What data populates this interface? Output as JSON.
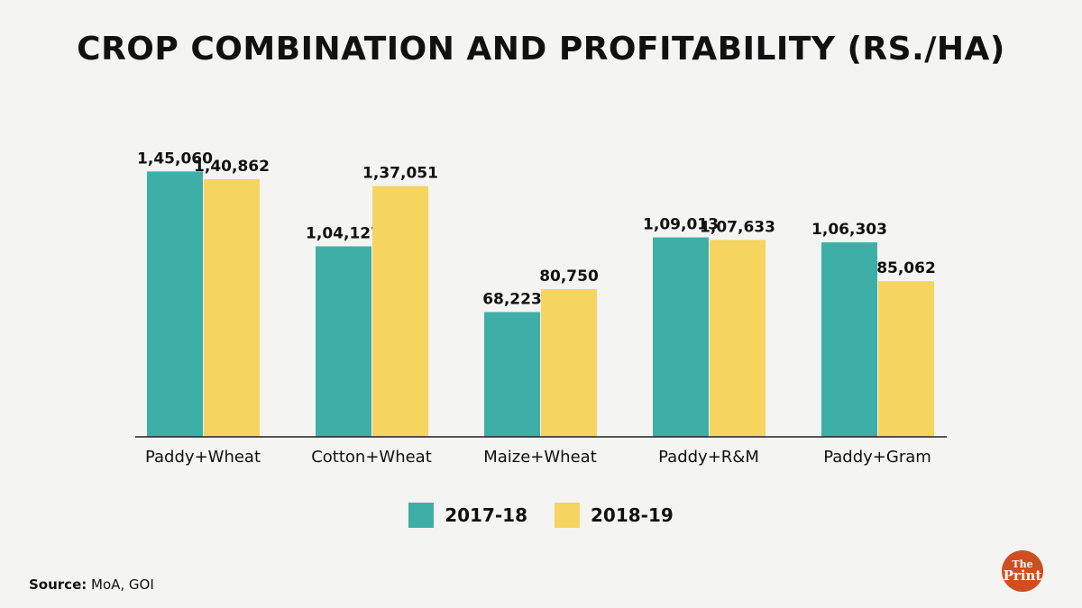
{
  "chart_data": {
    "type": "bar",
    "title": "CROP COMBINATION AND PROFITABILITY (RS./HA)",
    "categories": [
      "Paddy+Wheat",
      "Cotton+Wheat",
      "Maize+Wheat",
      "Paddy+R&M",
      "Paddy+Gram"
    ],
    "series": [
      {
        "name": "2017-18",
        "color": "#3eafa6",
        "values": [
          145060,
          104127,
          68223,
          109013,
          106303
        ],
        "labels": [
          "1,45,060",
          "1,04,127",
          "68,223",
          "1,09,013",
          "1,06,303"
        ]
      },
      {
        "name": "2018-19",
        "color": "#f5d460",
        "values": [
          140862,
          137051,
          80750,
          107633,
          85062
        ],
        "labels": [
          "1,40,862",
          "1,37,051",
          "80,750",
          "1,07,633",
          "85,062"
        ]
      }
    ],
    "ylim": [
      0,
      160000
    ],
    "grid": false,
    "legend": "bottom-center"
  },
  "source": {
    "label": "Source:",
    "text": " MoA, GOI"
  },
  "logo": {
    "line1": "The",
    "line2": "Print"
  }
}
